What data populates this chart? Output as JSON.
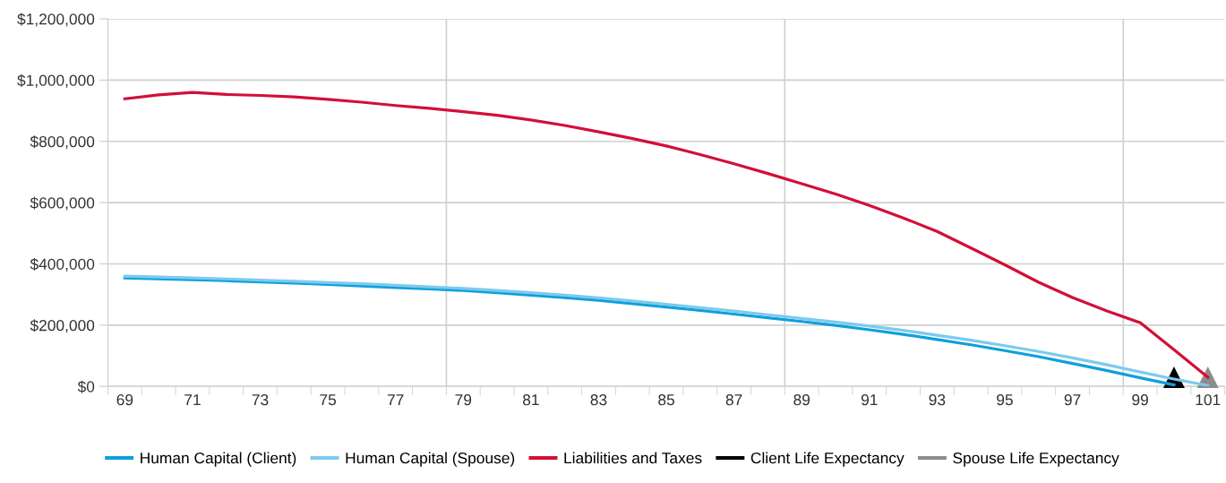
{
  "chart_data": {
    "type": "line",
    "categories": [
      "69",
      null,
      "71",
      null,
      "73",
      null,
      "75",
      null,
      "77",
      null,
      "79",
      null,
      "81",
      null,
      "83",
      null,
      "85",
      null,
      "87",
      null,
      "89",
      null,
      "91",
      null,
      "93",
      null,
      "95",
      null,
      "97",
      null,
      "99",
      null,
      "101"
    ],
    "series": [
      {
        "name": "Human Capital (Client)",
        "color": "#0ea0dc",
        "values": [
          354000,
          351000,
          348000,
          345000,
          341000,
          337000,
          333000,
          328000,
          323000,
          318000,
          313000,
          306000,
          298000,
          290000,
          281000,
          270000,
          259000,
          248000,
          236000,
          224000,
          212000,
          199000,
          185000,
          170000,
          153000,
          136000,
          117000,
          97000,
          75000,
          52000,
          28000,
          5000,
          null
        ]
      },
      {
        "name": "Human Capital (Spouse)",
        "color": "#7ccbed",
        "values": [
          360000,
          357000,
          354000,
          351000,
          347000,
          343000,
          339000,
          335000,
          330000,
          325000,
          320000,
          313000,
          306000,
          298000,
          289000,
          279000,
          268000,
          257000,
          246000,
          234000,
          222000,
          210000,
          197000,
          183000,
          167000,
          151000,
          133000,
          114000,
          93000,
          71000,
          47000,
          24000,
          3000
        ]
      },
      {
        "name": "Liabilities and Taxes",
        "color": "#d20f38",
        "values": [
          939000,
          952000,
          960000,
          953000,
          950000,
          945000,
          937000,
          928000,
          917000,
          908000,
          897000,
          885000,
          870000,
          852000,
          831000,
          809000,
          785000,
          757000,
          727000,
          695000,
          662000,
          628000,
          591000,
          550000,
          506000,
          452000,
          397000,
          340000,
          290000,
          247000,
          208000,
          120000,
          30000
        ]
      },
      {
        "name": "Client Life Expectancy",
        "color": "#000000",
        "type": "scatter",
        "marker": "triangle",
        "values": [
          null,
          null,
          null,
          null,
          null,
          null,
          null,
          null,
          null,
          null,
          null,
          null,
          null,
          null,
          null,
          null,
          null,
          null,
          null,
          null,
          null,
          null,
          null,
          null,
          null,
          null,
          null,
          null,
          null,
          null,
          null,
          30000,
          null
        ]
      },
      {
        "name": "Spouse Life Expectancy",
        "color": "#8c8c8c",
        "type": "scatter",
        "marker": "triangle",
        "values": [
          null,
          null,
          null,
          null,
          null,
          null,
          null,
          null,
          null,
          null,
          null,
          null,
          null,
          null,
          null,
          null,
          null,
          null,
          null,
          null,
          null,
          null,
          null,
          null,
          null,
          null,
          null,
          null,
          null,
          null,
          null,
          null,
          30000
        ]
      }
    ],
    "ylim": [
      0,
      1200000
    ],
    "yticks": [
      {
        "value": 0,
        "label": "$0"
      },
      {
        "value": 200000,
        "label": "$200,000"
      },
      {
        "value": 400000,
        "label": "$400,000"
      },
      {
        "value": 600000,
        "label": "$600,000"
      },
      {
        "value": 800000,
        "label": "$800,000"
      },
      {
        "value": 1000000,
        "label": "$1,000,000"
      },
      {
        "value": 1200000,
        "label": "$1,200,000"
      }
    ],
    "grid": true,
    "legend": "bottom",
    "marker": "none"
  }
}
